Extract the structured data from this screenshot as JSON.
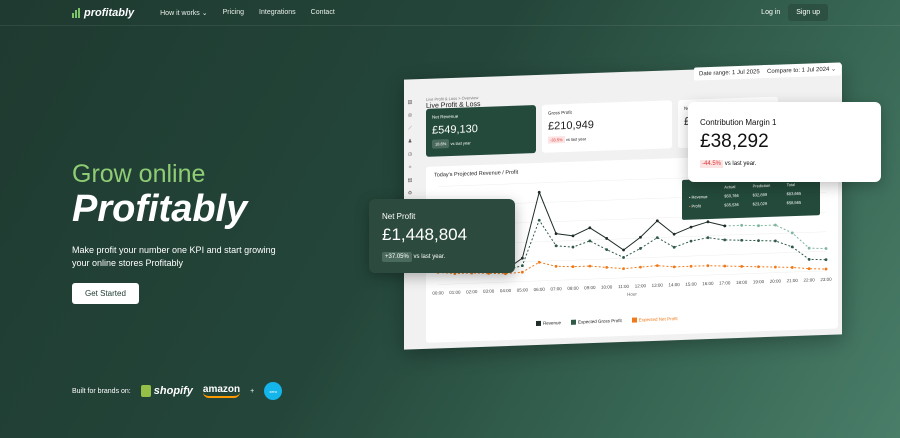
{
  "nav": {
    "brand": "profitably",
    "items": [
      "How it works",
      "Pricing",
      "Integrations",
      "Contact"
    ],
    "login": "Log in",
    "signup": "Sign up"
  },
  "hero": {
    "line1": "Grow online",
    "line2": "Profitably",
    "subtitle": "Make profit your number one KPI and start growing your online stores Profitably",
    "cta": "Get Started"
  },
  "brands": {
    "label": "Built for brands on:",
    "shopify": "shopify",
    "amazon": "amazon",
    "plus": "+",
    "xero": "xero"
  },
  "dashboard": {
    "date_range": "Date range: 1 Jul 2025",
    "compare": "Compare to: 1 Jul 2024",
    "breadcrumb": "Live Profit & Loss  >  Overview",
    "title": "Live Profit & Loss",
    "cards": [
      {
        "label": "Net Revenue",
        "value": "£549,130",
        "delta": "18.6%",
        "vs": "vs last year"
      },
      {
        "label": "Gross Profit",
        "value": "£210,949",
        "delta": "-33.5%",
        "vs": "vs last year"
      },
      {
        "label": "Net Profit",
        "value": "£",
        "delta": "-",
        "vs": ""
      }
    ],
    "chart_title": "Today's Projected Revenue / Profit",
    "tooltip": {
      "headers": [
        "",
        "Actual",
        "Prediction",
        "Total"
      ],
      "rows": [
        [
          "Revenue",
          "$50,766",
          "$32,899",
          "$83,665"
        ],
        [
          "Profit",
          "$35,536",
          "$23,029",
          "$58,565"
        ]
      ]
    },
    "xlabel": "Hour",
    "legend": [
      "Revenue",
      "Expected Gross Profit",
      "Expected Net Profit"
    ]
  },
  "contribution": {
    "label": "Contribution Margin 1",
    "value": "£38,292",
    "delta": "-44.5%",
    "vs": "vs last year."
  },
  "net_profit": {
    "label": "Net Profit",
    "value": "£1,448,804",
    "delta": "+37.05%",
    "vs": "vs last year."
  },
  "colors": {
    "accent": "#8fcd74",
    "revenue": "#1f2d27",
    "gross": "#2f5a47",
    "net": "#f07a1a",
    "projected": "#7fb59d"
  },
  "chart_data": {
    "type": "line",
    "x": [
      "00:00",
      "01:00",
      "02:00",
      "03:00",
      "04:00",
      "05:00",
      "06:00",
      "07:00",
      "08:00",
      "09:00",
      "10:00",
      "11:00",
      "12:00",
      "13:00",
      "14:00",
      "15:00",
      "16:00",
      "17:00",
      "18:00",
      "19:00",
      "20:00",
      "21:00",
      "22:00",
      "23:00"
    ],
    "xlabel": "Hour",
    "ylim": [
      -5,
      100
    ],
    "actual_until": "17:00",
    "series": [
      {
        "name": "Revenue",
        "values": [
          10,
          8,
          7,
          12,
          8,
          20,
          90,
          45,
          42,
          50,
          38,
          25,
          38,
          55,
          40,
          47,
          52,
          47,
          47,
          46,
          46,
          37,
          20,
          19
        ]
      },
      {
        "name": "Expected Gross Profit",
        "values": [
          10,
          8,
          7,
          10,
          8,
          12,
          60,
          32,
          30,
          36,
          26,
          17,
          26,
          37,
          26,
          32,
          35,
          32,
          31,
          30,
          29,
          22,
          8,
          7
        ]
      },
      {
        "name": "Expected Net Profit",
        "values": [
          8,
          6,
          6,
          5,
          4,
          5,
          15,
          10,
          9,
          9,
          7,
          5,
          6,
          7,
          5,
          5,
          5,
          4,
          3,
          2,
          1,
          0,
          -2,
          -3
        ]
      }
    ]
  }
}
